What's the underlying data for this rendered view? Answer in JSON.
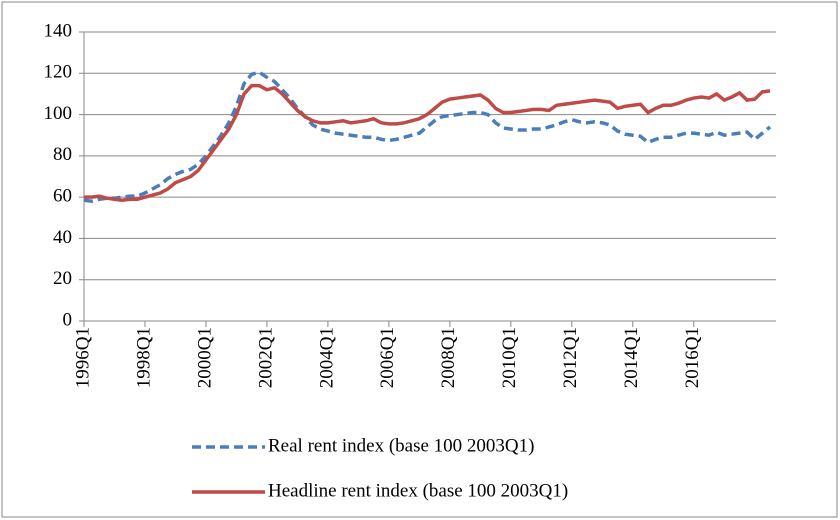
{
  "chart_data": {
    "type": "line",
    "categories": [
      "1996Q1",
      null,
      null,
      null,
      null,
      null,
      null,
      null,
      "1998Q1",
      null,
      null,
      null,
      null,
      null,
      null,
      null,
      "2000Q1",
      null,
      null,
      null,
      null,
      null,
      null,
      null,
      "2002Q1",
      null,
      null,
      null,
      null,
      null,
      null,
      null,
      "2004Q1",
      null,
      null,
      null,
      null,
      null,
      null,
      null,
      "2006Q1",
      null,
      null,
      null,
      null,
      null,
      null,
      null,
      "2008Q1",
      null,
      null,
      null,
      null,
      null,
      null,
      null,
      "2010Q1",
      null,
      null,
      null,
      null,
      null,
      null,
      null,
      "2012Q1",
      null,
      null,
      null,
      null,
      null,
      null,
      null,
      "2014Q1",
      null,
      null,
      null,
      null,
      null,
      null,
      null,
      "2016Q1",
      null,
      null,
      null,
      null,
      null,
      null,
      null,
      null,
      null,
      null
    ],
    "series": [
      {
        "name": "Real rent index (base 100 2003Q1)",
        "color": "#4a7ebb",
        "dashed": true,
        "values": [
          58.5,
          58,
          59,
          59.5,
          59.5,
          60,
          60.5,
          60.5,
          62,
          64,
          66,
          69,
          71,
          72.5,
          73.5,
          76,
          80,
          85,
          90,
          96,
          104,
          115,
          119.5,
          120.5,
          118,
          116,
          112,
          108,
          103,
          99,
          95,
          93,
          92,
          91,
          90.5,
          90,
          89.5,
          89,
          89,
          88,
          87.5,
          88,
          89,
          90,
          91,
          94,
          97,
          99,
          99.5,
          100,
          100.5,
          101,
          101,
          100,
          96,
          93.5,
          93,
          92.5,
          92.5,
          93,
          93,
          94,
          95,
          96.5,
          97.5,
          96.5,
          96,
          96.5,
          96,
          95,
          92,
          90.5,
          90,
          89.5,
          86.5,
          88,
          89,
          89,
          90,
          91,
          91,
          90.5,
          90,
          91.5,
          90,
          90.5,
          91,
          91.5,
          88,
          91,
          94
        ]
      },
      {
        "name": "Headline rent index (base 100 2003Q1)",
        "color": "#be4b48",
        "dashed": false,
        "values": [
          60,
          60,
          60.5,
          59.5,
          59,
          58.5,
          59,
          59,
          60,
          61,
          62,
          64,
          67,
          68.5,
          70,
          73,
          78,
          83,
          88,
          93,
          100,
          110,
          114,
          114,
          112,
          113,
          110,
          106,
          102,
          99,
          97,
          96,
          96,
          96.5,
          97,
          96,
          96.5,
          97,
          98,
          96,
          95.5,
          95.5,
          96,
          97,
          98,
          100,
          103,
          106,
          107.5,
          108,
          108.5,
          109,
          109.5,
          107,
          103,
          101,
          101,
          101.5,
          102,
          102.5,
          102.5,
          102,
          104.5,
          105,
          105.5,
          106,
          106.5,
          107,
          106.5,
          106,
          103,
          104,
          104.5,
          105,
          101,
          103,
          104.5,
          104.5,
          105.5,
          107,
          108,
          108.5,
          108,
          110,
          107,
          108.5,
          110.5,
          107,
          107.5,
          111,
          111.5
        ]
      }
    ],
    "ylim": [
      0,
      140
    ],
    "yticks": [
      0,
      20,
      40,
      60,
      80,
      100,
      120,
      140
    ],
    "grid": true
  }
}
